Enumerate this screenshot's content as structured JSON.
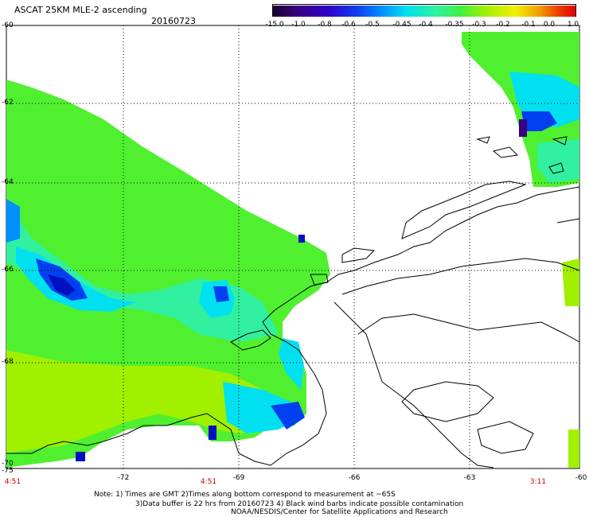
{
  "header": {
    "title": "ASCAT 25KM MLE-2 ascending",
    "date": "20160723"
  },
  "colorbar": {
    "labels": [
      "-15.0",
      "-1.0",
      "-0.8",
      "-0.6",
      "-0.5",
      "-0.45",
      "-0.4",
      "-0.35",
      "-0.3",
      "-0.2",
      "-0.1",
      "0.0",
      "1.0"
    ],
    "colors": [
      "#1a0030",
      "#3a0080",
      "#3000c8",
      "#1040f0",
      "#0090ff",
      "#00e0f0",
      "#30f0a0",
      "#40f040",
      "#a0f000",
      "#f0f000",
      "#f0a000",
      "#f04000",
      "#e00000"
    ]
  },
  "axes": {
    "lat_labels": [
      "-60",
      "-62",
      "-64",
      "-66",
      "-68",
      "-70",
      "-75"
    ],
    "lon_labels": [
      "-72",
      "-69",
      "-66",
      "-63",
      "-60"
    ],
    "time_labels": [
      "4:51",
      "4:51",
      "3:11"
    ]
  },
  "notes": {
    "line1": "Note: 1) Times are GMT 2)Times along bottom correspond to measurement at ~65S",
    "line2": "3)Data buffer is 22 hrs from 20160723 4) Black wind barbs indicate possible contamination",
    "line3": "NOAA/NESDIS/Center for Satellite Applications and Research"
  },
  "colors": {
    "green": "#50f030",
    "lime": "#a0f000",
    "cyan": "#00f0f0",
    "blue": "#0040f0",
    "darkblue": "#0010c0"
  }
}
